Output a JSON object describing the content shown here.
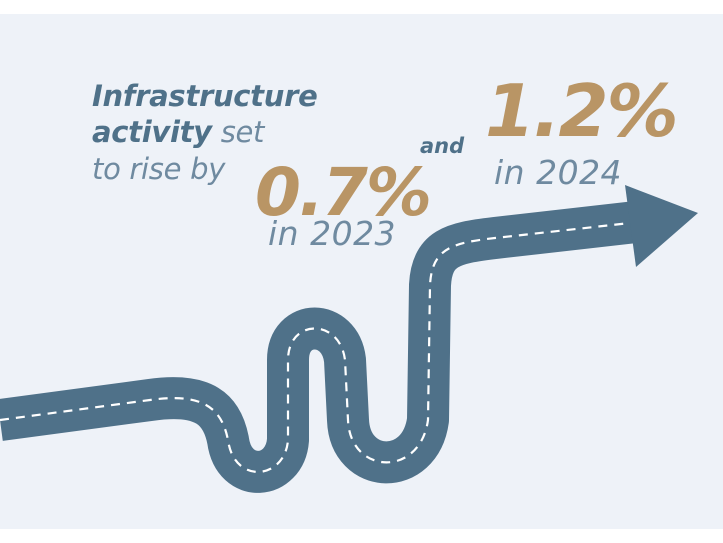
{
  "headline": {
    "line1": "Infrastructure",
    "line2_bold": "activity",
    "line2_rest": " set",
    "line3": "to rise by"
  },
  "stat_2023": {
    "value": "0.7%",
    "year": "in 2023"
  },
  "connector": "and",
  "stat_2024": {
    "value": "1.2%",
    "year": "in 2024"
  },
  "colors": {
    "background": "#eef2f8",
    "road": "#4f7189",
    "accent": "#b99565",
    "bold_text": "#4f7189",
    "muted_text": "#6f8aa0",
    "dash": "#ffffff"
  },
  "icons": [
    "winding-road-arrow-icon"
  ]
}
